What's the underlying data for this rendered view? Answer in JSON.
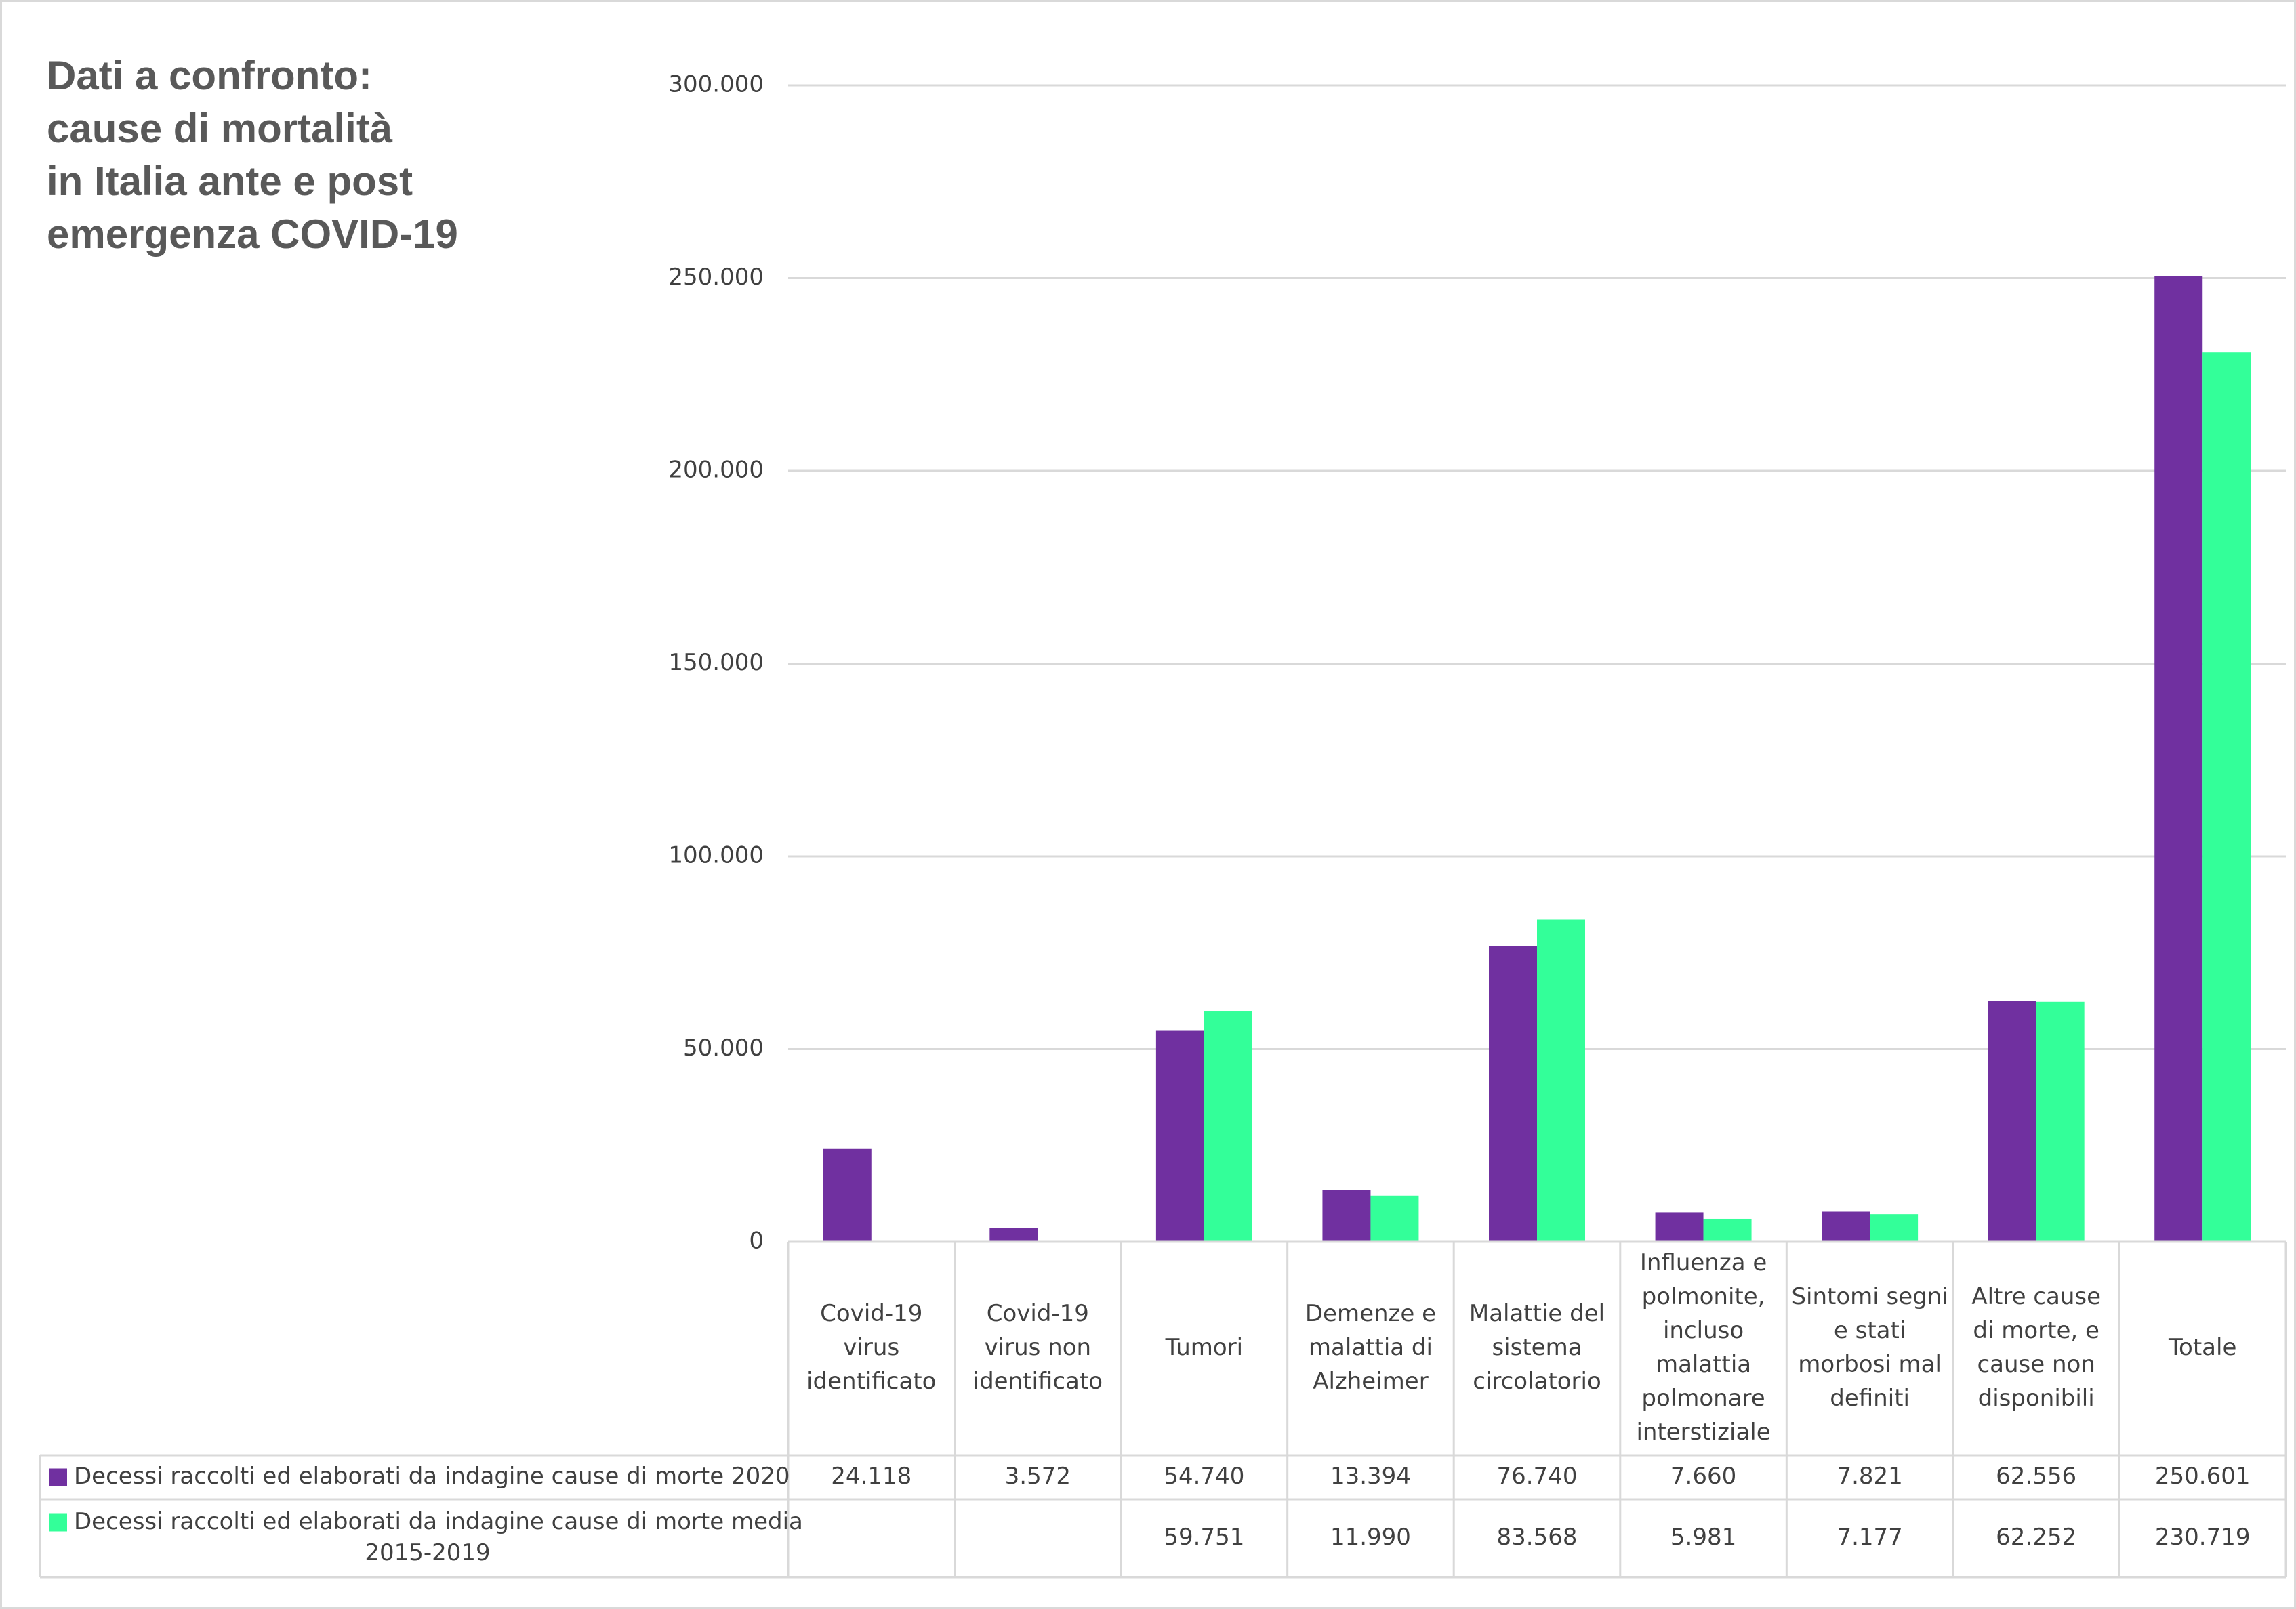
{
  "chart_data": {
    "type": "bar",
    "title": "Dati a confronto:\ncause di mortalità\nin Italia ante e post\nemergenza COVID-19",
    "categories": [
      [
        "Covid-19",
        "virus",
        "identificato"
      ],
      [
        "Covid-19",
        "virus non",
        "identificato"
      ],
      [
        "Tumori"
      ],
      [
        "Demenze e",
        "malattia di",
        "Alzheimer"
      ],
      [
        "Malattie del",
        "sistema",
        "circolatorio"
      ],
      [
        "Influenza e",
        "polmonite,",
        "incluso",
        "malattia",
        "polmonare",
        "interstiziale"
      ],
      [
        "Sintomi segni",
        "e stati",
        "morbosi mal",
        "definiti"
      ],
      [
        "Altre cause",
        "di morte, e",
        "cause non",
        "disponibili"
      ],
      [
        "Totale"
      ]
    ],
    "series": [
      {
        "name": [
          "Decessi raccolti ed elaborati da indagine cause di morte 2020"
        ],
        "color": "#7030a0",
        "values": [
          24118,
          3572,
          54740,
          13394,
          76740,
          7660,
          7821,
          62556,
          250601
        ],
        "labels": [
          "24.118",
          "3.572",
          "54.740",
          "13.394",
          "76.740",
          "7.660",
          "7.821",
          "62.556",
          "250.601"
        ]
      },
      {
        "name": [
          "Decessi raccolti ed elaborati da indagine cause di morte media",
          "2015-2019"
        ],
        "color": "#33ff99",
        "values": [
          null,
          null,
          59751,
          11990,
          83568,
          5981,
          7177,
          62252,
          230719
        ],
        "labels": [
          "",
          "",
          "59.751",
          "11.990",
          "83.568",
          "5.981",
          "7.177",
          "62.252",
          "230.719"
        ]
      }
    ],
    "ylim": [
      0,
      300000
    ],
    "yticks": [
      0,
      50000,
      100000,
      150000,
      200000,
      250000,
      300000
    ],
    "ytick_labels": [
      "0",
      "50.000",
      "100.000",
      "150.000",
      "200.000",
      "250.000",
      "300.000"
    ],
    "grid": true,
    "legend": "data-table-below"
  }
}
